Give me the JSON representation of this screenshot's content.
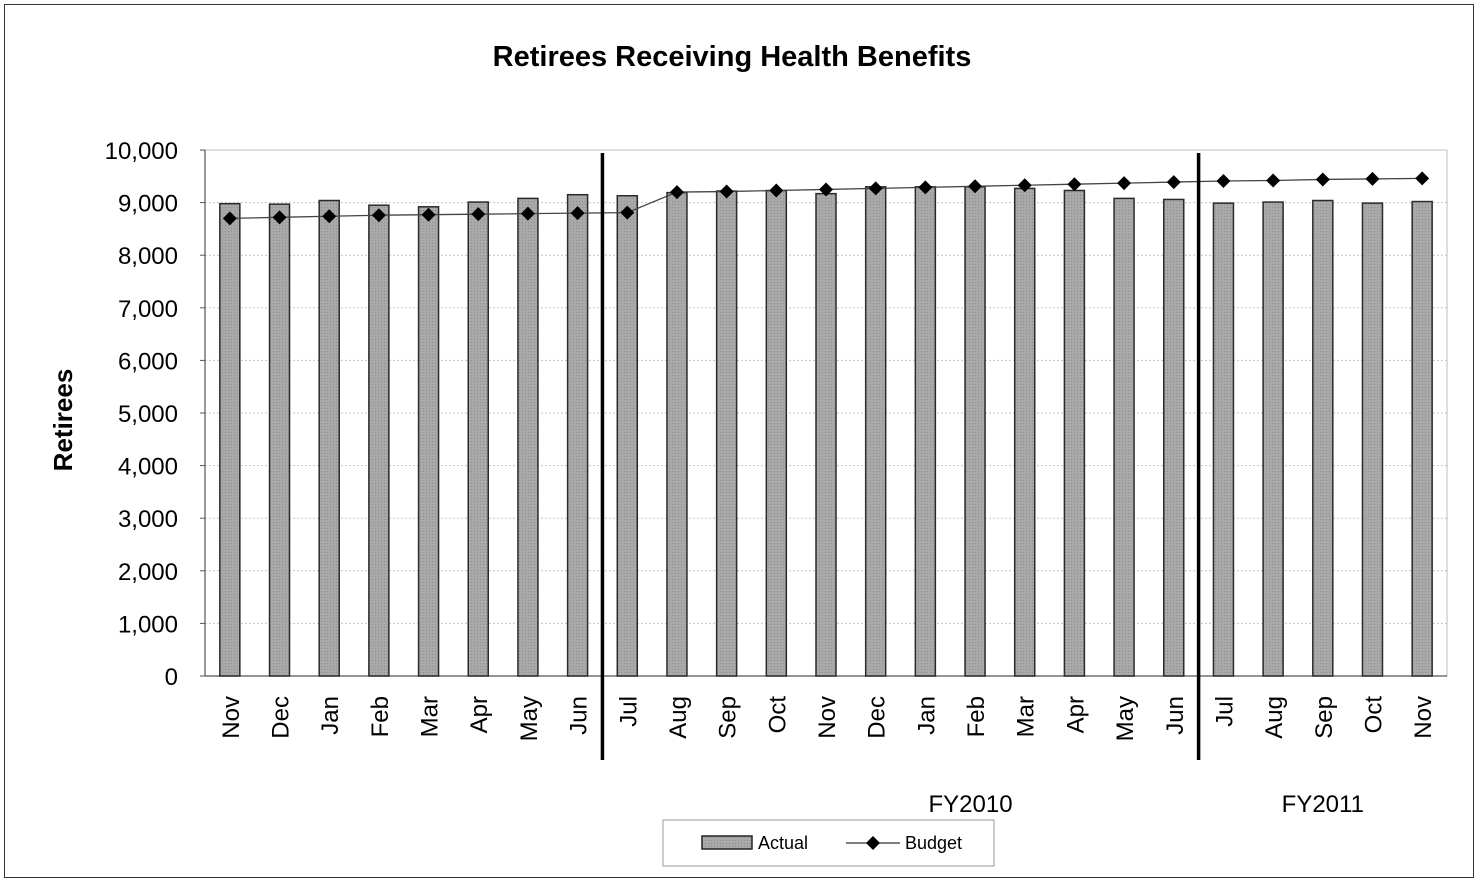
{
  "chart_data": {
    "type": "bar",
    "title": "Retirees Receiving Health Benefits",
    "xlabel": "",
    "ylabel": "Retirees",
    "ylim": [
      0,
      10000
    ],
    "yticks": [
      "0",
      "1,000",
      "2,000",
      "3,000",
      "4,000",
      "5,000",
      "6,000",
      "7,000",
      "8,000",
      "9,000",
      "10,000"
    ],
    "ytick_values": [
      0,
      1000,
      2000,
      3000,
      4000,
      5000,
      6000,
      7000,
      8000,
      9000,
      10000
    ],
    "grid": true,
    "categories": [
      "Nov",
      "Dec",
      "Jan",
      "Feb",
      "Mar",
      "Apr",
      "May",
      "Jun",
      "Jul",
      "Aug",
      "Sep",
      "Oct",
      "Nov",
      "Dec",
      "Jan",
      "Feb",
      "Mar",
      "Apr",
      "May",
      "Jun",
      "Jul",
      "Aug",
      "Sep",
      "Oct",
      "Nov"
    ],
    "series": [
      {
        "name": "Actual",
        "kind": "bar",
        "color": "#a6a6a6",
        "values": [
          8980,
          8970,
          9040,
          8950,
          8920,
          9010,
          9080,
          9150,
          9130,
          9190,
          9220,
          9230,
          9170,
          9300,
          9300,
          9300,
          9270,
          9230,
          9080,
          9060,
          8990,
          9010,
          9040,
          8990,
          9020
        ]
      },
      {
        "name": "Budget",
        "kind": "line",
        "color": "#000000",
        "marker": "diamond",
        "values": [
          8700,
          8720,
          8740,
          8760,
          8770,
          8780,
          8790,
          8800,
          8810,
          9200,
          9210,
          9230,
          9250,
          9270,
          9290,
          9310,
          9330,
          9350,
          9370,
          9390,
          9410,
          9420,
          9440,
          9450,
          9460
        ]
      }
    ],
    "dividers_after_index": [
      7,
      19
    ],
    "group_labels": [
      {
        "text": "FY2010",
        "center_between": [
          8,
          19
        ]
      },
      {
        "text": "FY2011",
        "center_between": [
          20,
          24
        ]
      }
    ],
    "legend": {
      "position": "bottom-center",
      "items": [
        "Actual",
        "Budget"
      ]
    }
  }
}
